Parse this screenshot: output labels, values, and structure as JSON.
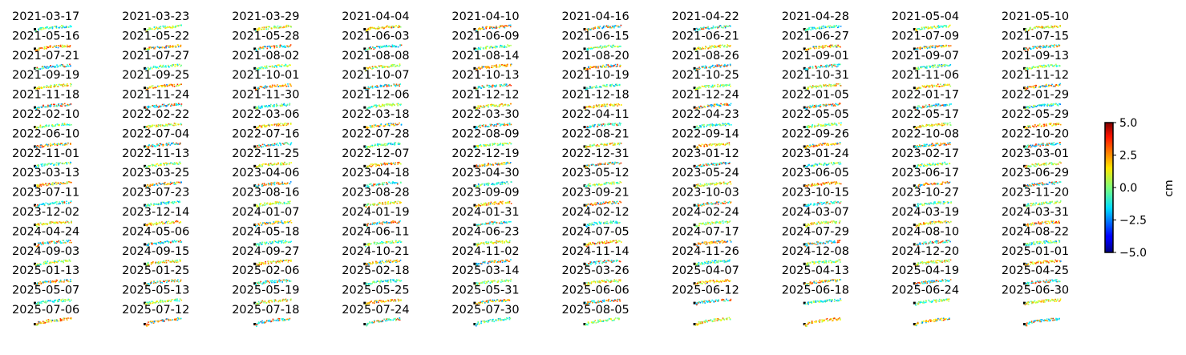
{
  "chart_data": {
    "type": "scatter",
    "layout": "small multiples grid of displacement maps, one panel per acquisition date",
    "grid": {
      "columns": 10,
      "rows": 16
    },
    "dates": [
      "2021-03-17",
      "2021-03-23",
      "2021-03-29",
      "2021-04-04",
      "2021-04-10",
      "2021-04-16",
      "2021-04-22",
      "2021-04-28",
      "2021-05-04",
      "2021-05-10",
      "2021-05-16",
      "2021-05-22",
      "2021-05-28",
      "2021-06-03",
      "2021-06-09",
      "2021-06-15",
      "2021-06-21",
      "2021-06-27",
      "2021-07-09",
      "2021-07-15",
      "2021-07-21",
      "2021-07-27",
      "2021-08-02",
      "2021-08-08",
      "2021-08-14",
      "2021-08-20",
      "2021-08-26",
      "2021-09-01",
      "2021-09-07",
      "2021-09-13",
      "2021-09-19",
      "2021-09-25",
      "2021-10-01",
      "2021-10-07",
      "2021-10-13",
      "2021-10-19",
      "2021-10-25",
      "2021-10-31",
      "2021-11-06",
      "2021-11-12",
      "2021-11-18",
      "2021-11-24",
      "2021-11-30",
      "2021-12-06",
      "2021-12-12",
      "2021-12-18",
      "2021-12-24",
      "2022-01-05",
      "2022-01-17",
      "2022-01-29",
      "2022-02-10",
      "2022-02-22",
      "2022-03-06",
      "2022-03-18",
      "2022-03-30",
      "2022-04-11",
      "2022-04-23",
      "2022-05-05",
      "2022-05-17",
      "2022-05-29",
      "2022-06-10",
      "2022-07-04",
      "2022-07-16",
      "2022-07-28",
      "2022-08-09",
      "2022-08-21",
      "2022-09-14",
      "2022-09-26",
      "2022-10-08",
      "2022-10-20",
      "2022-11-01",
      "2022-11-13",
      "2022-11-25",
      "2022-12-07",
      "2022-12-19",
      "2022-12-31",
      "2023-01-12",
      "2023-01-24",
      "2023-02-17",
      "2023-03-01",
      "2023-03-13",
      "2023-03-25",
      "2023-04-06",
      "2023-04-18",
      "2023-04-30",
      "2023-05-12",
      "2023-05-24",
      "2023-06-05",
      "2023-06-17",
      "2023-06-29",
      "2023-07-11",
      "2023-07-23",
      "2023-08-16",
      "2023-08-28",
      "2023-09-09",
      "2023-09-21",
      "2023-10-03",
      "2023-10-15",
      "2023-10-27",
      "2023-11-20",
      "2023-12-02",
      "2023-12-14",
      "2024-01-07",
      "2024-01-19",
      "2024-01-31",
      "2024-02-12",
      "2024-02-24",
      "2024-03-07",
      "2024-03-19",
      "2024-03-31",
      "2024-04-24",
      "2024-05-06",
      "2024-05-18",
      "2024-06-11",
      "2024-06-23",
      "2024-07-05",
      "2024-07-17",
      "2024-07-29",
      "2024-08-10",
      "2024-08-22",
      "2024-09-03",
      "2024-09-15",
      "2024-09-27",
      "2024-10-21",
      "2024-11-02",
      "2024-11-14",
      "2024-11-26",
      "2024-12-08",
      "2024-12-20",
      "2025-01-01",
      "2025-01-13",
      "2025-01-25",
      "2025-02-06",
      "2025-02-18",
      "2025-03-14",
      "2025-03-26",
      "2025-04-07",
      "2025-04-13",
      "2025-04-19",
      "2025-04-25",
      "2025-05-07",
      "2025-05-13",
      "2025-05-19",
      "2025-05-25",
      "2025-05-31",
      "2025-06-06",
      "2025-06-12",
      "2025-06-18",
      "2025-06-24",
      "2025-06-30",
      "2025-07-06",
      "2025-07-12",
      "2025-07-18",
      "2025-07-24",
      "2025-07-30",
      "2025-08-05"
    ],
    "colorbar": {
      "label": "cm",
      "colormap": "jet",
      "range": [
        -5.0,
        5.0
      ],
      "ticks": [
        "5.0",
        "2.5",
        "0.0",
        "−2.5",
        "−5.0"
      ],
      "tick_values": [
        5.0,
        2.5,
        0.0,
        -2.5,
        -5.0
      ]
    },
    "track_shape": {
      "description": "thin elongated point track with a small black reference marker at its left end",
      "points_x": [
        0.0,
        0.04,
        0.08,
        0.14,
        0.2,
        0.26,
        0.32,
        0.38,
        0.44,
        0.5,
        0.56,
        0.62,
        0.68,
        0.74,
        0.8,
        0.86,
        0.92,
        1.0
      ],
      "points_y": [
        0.0,
        0.2,
        0.35,
        0.42,
        0.5,
        0.55,
        0.6,
        0.66,
        0.7,
        0.74,
        0.78,
        0.82,
        0.86,
        0.88,
        0.9,
        0.93,
        0.95,
        1.0
      ]
    }
  }
}
